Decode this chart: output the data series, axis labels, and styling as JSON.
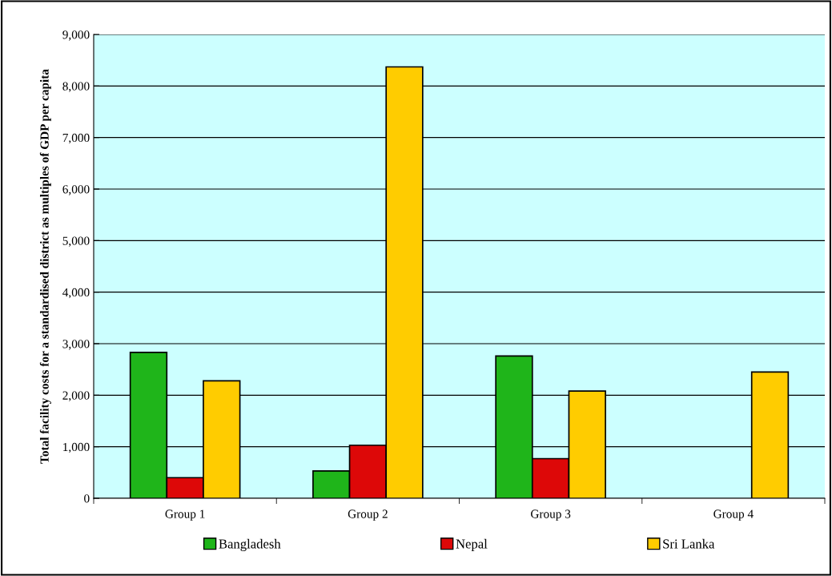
{
  "chart_data": {
    "type": "bar",
    "ylabel": "Total facility costs for a standardised district as multiples of GDP per capita",
    "categories": [
      "Group 1",
      "Group 2",
      "Group 3",
      "Group 4"
    ],
    "series": [
      {
        "name": "Bangladesh",
        "color": "#1fb51a",
        "values": [
          2830,
          530,
          2760,
          null
        ]
      },
      {
        "name": "Nepal",
        "color": "#dd0808",
        "values": [
          400,
          1030,
          770,
          null
        ]
      },
      {
        "name": "Sri Lanka",
        "color": "#ffcc00",
        "values": [
          2280,
          8370,
          2080,
          2450
        ]
      }
    ],
    "ylim": [
      0,
      9000
    ],
    "yticks": [
      {
        "value": 0,
        "label": "0"
      },
      {
        "value": 1000,
        "label": "1,000"
      },
      {
        "value": 2000,
        "label": "2,000"
      },
      {
        "value": 3000,
        "label": "3,000"
      },
      {
        "value": 4000,
        "label": "4,000"
      },
      {
        "value": 5000,
        "label": "5,000"
      },
      {
        "value": 6000,
        "label": "6,000"
      },
      {
        "value": 7000,
        "label": "7,000"
      },
      {
        "value": 8000,
        "label": "8,000"
      },
      {
        "value": 9000,
        "label": "9,000"
      }
    ],
    "grid": "y",
    "legend": "bottom"
  }
}
